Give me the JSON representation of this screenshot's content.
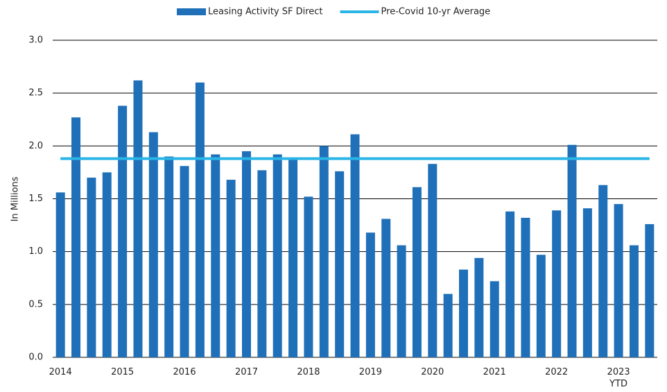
{
  "chart_data": {
    "type": "bar",
    "y_label": "In Millions",
    "categories": [
      "2014",
      null,
      null,
      null,
      "2015",
      null,
      null,
      null,
      "2016",
      null,
      null,
      null,
      "2017",
      null,
      null,
      null,
      "2018",
      null,
      null,
      null,
      "2019",
      null,
      null,
      null,
      "2020",
      null,
      null,
      null,
      "2021",
      null,
      null,
      null,
      "2022",
      null,
      null,
      null,
      "2023\nYTD",
      null,
      null
    ],
    "series": [
      {
        "name": "Leasing Activity SF Direct",
        "color": "#1f70b8",
        "type": "bar",
        "values": [
          1.56,
          2.27,
          1.7,
          1.75,
          2.38,
          2.62,
          2.13,
          1.9,
          1.81,
          2.6,
          1.92,
          1.68,
          1.95,
          1.77,
          1.92,
          1.89,
          1.52,
          2.0,
          1.76,
          2.11,
          1.18,
          1.31,
          1.06,
          1.61,
          1.83,
          0.6,
          0.83,
          0.94,
          0.72,
          1.38,
          1.32,
          0.97,
          1.39,
          2.01,
          1.41,
          1.63,
          1.45,
          1.06,
          1.26
        ]
      },
      {
        "name": "Pre-Covid 10-yr Average",
        "color": "#2bb4e6",
        "type": "line",
        "values": [
          1.88,
          1.88,
          1.88,
          1.88,
          1.88,
          1.88,
          1.88,
          1.88,
          1.88,
          1.88,
          1.88,
          1.88,
          1.88,
          1.88,
          1.88,
          1.88,
          1.88,
          1.88,
          1.88,
          1.88,
          1.88,
          1.88,
          1.88,
          1.88,
          1.88,
          1.88,
          1.88,
          1.88,
          1.88,
          1.88,
          1.88,
          1.88,
          1.88,
          1.88,
          1.88,
          1.88,
          1.88,
          1.88,
          1.88
        ]
      }
    ],
    "ylim": [
      0,
      3
    ],
    "yticks": [
      {
        "value": 0,
        "label": "0.0"
      },
      {
        "value": 0.5,
        "label": "0.5"
      },
      {
        "value": 1,
        "label": "1.0"
      },
      {
        "value": 1.5,
        "label": "1.5"
      },
      {
        "value": 2,
        "label": "2.0"
      },
      {
        "value": 2.5,
        "label": "2.5"
      },
      {
        "value": 3,
        "label": "3.0"
      }
    ],
    "grid": true,
    "legend": "top"
  }
}
